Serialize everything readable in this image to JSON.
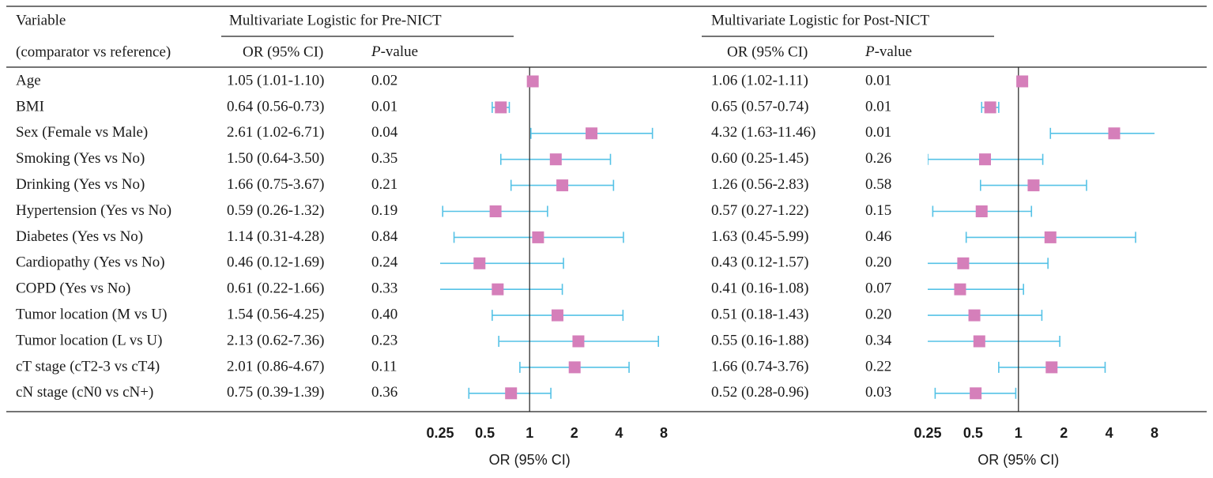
{
  "table_header": {
    "variable": "Variable",
    "comparator": "(comparator vs reference)"
  },
  "chart_data": [
    {
      "type": "forest",
      "title": "Multivariate Logistic for Pre-NICT",
      "ci_header": "OR (95% CI)",
      "p_header_italic": "P",
      "p_header_rest": "-value",
      "categories": [
        "Age",
        "BMI",
        "Sex (Female vs Male)",
        "Smoking (Yes vs No)",
        "Drinking (Yes vs No)",
        "Hypertension (Yes vs No)",
        "Diabetes (Yes vs No)",
        "Cardiopathy (Yes vs No)",
        "COPD (Yes vs No)",
        "Tumor location (M vs U)",
        "Tumor location (L vs U)",
        "cT stage (cT2-3 vs cT4)",
        "cN stage (cN0 vs cN+)"
      ],
      "values": [
        1.05,
        0.64,
        2.61,
        1.5,
        1.66,
        0.59,
        1.14,
        0.46,
        0.61,
        1.54,
        2.13,
        2.01,
        0.75
      ],
      "lower": [
        1.01,
        0.56,
        1.02,
        0.64,
        0.75,
        0.26,
        0.31,
        0.12,
        0.22,
        0.56,
        0.62,
        0.86,
        0.39
      ],
      "upper": [
        1.1,
        0.73,
        6.71,
        3.5,
        3.67,
        1.32,
        4.28,
        1.69,
        1.66,
        4.25,
        7.36,
        4.67,
        1.39
      ],
      "value_labels": [
        "1.05 (1.01-1.10)",
        "0.64 (0.56-0.73)",
        "2.61 (1.02-6.71)",
        "1.50 (0.64-3.50)",
        "1.66 (0.75-3.67)",
        "0.59 (0.26-1.32)",
        "1.14 (0.31-4.28)",
        "0.46 (0.12-1.69)",
        "0.61 (0.22-1.66)",
        "1.54 (0.56-4.25)",
        "2.13 (0.62-7.36)",
        "2.01 (0.86-4.67)",
        "0.75 (0.39-1.39)"
      ],
      "p_values": [
        "0.02",
        "0.01",
        "0.04",
        "0.35",
        "0.21",
        "0.19",
        "0.84",
        "0.24",
        "0.33",
        "0.40",
        "0.23",
        "0.11",
        "0.36"
      ],
      "xlim": [
        0.25,
        8
      ],
      "xticks": [
        0.25,
        0.5,
        1,
        2,
        4,
        8
      ],
      "log_x": true,
      "reference": 1,
      "xlabel": "OR (95% CI)",
      "color": "#d57fba",
      "ci_color": "#55c2e6"
    },
    {
      "type": "forest",
      "title": "Multivariate Logistic for Post-NICT",
      "ci_header": "OR (95% CI)",
      "p_header_italic": "P",
      "p_header_rest": "-value",
      "values": [
        1.06,
        0.65,
        4.32,
        0.6,
        1.26,
        0.57,
        1.63,
        0.43,
        0.41,
        0.51,
        0.55,
        1.66,
        0.52
      ],
      "lower": [
        1.02,
        0.57,
        1.63,
        0.25,
        0.56,
        0.27,
        0.45,
        0.12,
        0.16,
        0.18,
        0.16,
        0.74,
        0.28
      ],
      "upper": [
        1.11,
        0.74,
        11.46,
        1.45,
        2.83,
        1.22,
        5.99,
        1.57,
        1.08,
        1.43,
        1.88,
        3.76,
        0.96
      ],
      "value_labels": [
        "1.06 (1.02-1.11)",
        "0.65 (0.57-0.74)",
        "4.32 (1.63-11.46)",
        "0.60 (0.25-1.45)",
        "1.26 (0.56-2.83)",
        "0.57 (0.27-1.22)",
        "1.63 (0.45-5.99)",
        "0.43 (0.12-1.57)",
        "0.41 (0.16-1.08)",
        "0.51 (0.18-1.43)",
        "0.55 (0.16-1.88)",
        "1.66 (0.74-3.76)",
        "0.52 (0.28-0.96)"
      ],
      "p_values": [
        "0.01",
        "0.01",
        "0.01",
        "0.26",
        "0.58",
        "0.15",
        "0.46",
        "0.20",
        "0.07",
        "0.20",
        "0.34",
        "0.22",
        "0.03"
      ],
      "xlim": [
        0.25,
        8
      ],
      "xticks": [
        0.25,
        0.5,
        1,
        2,
        4,
        8
      ],
      "log_x": true,
      "reference": 1,
      "xlabel": "OR (95% CI)",
      "color": "#d57fba",
      "ci_color": "#55c2e6"
    }
  ]
}
